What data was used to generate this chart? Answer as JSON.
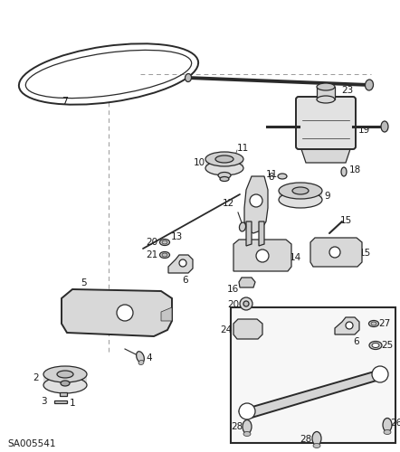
{
  "bg_color": "#ffffff",
  "line_color": "#2a2a2a",
  "label_color": "#1a1a1a",
  "part_id": "SA005541",
  "fig_width": 4.42,
  "fig_height": 5.0,
  "dpi": 100
}
